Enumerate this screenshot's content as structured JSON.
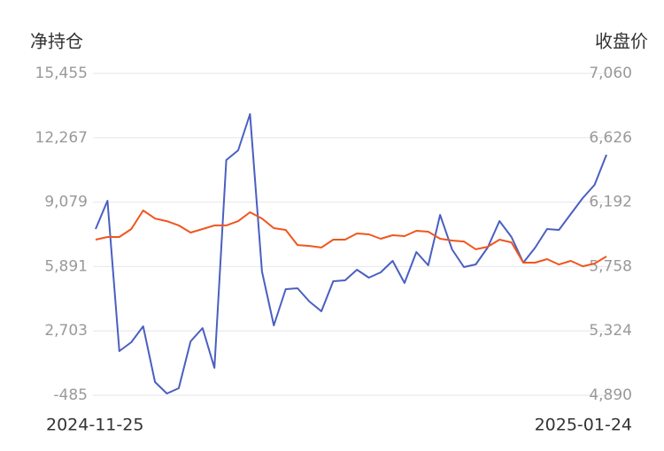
{
  "chart_data": {
    "type": "line",
    "y_label": "净持仓",
    "y2_label": "收盘价",
    "categories": [
      "2024-11-25",
      null,
      null,
      null,
      null,
      null,
      null,
      null,
      null,
      null,
      null,
      null,
      null,
      null,
      null,
      null,
      null,
      null,
      null,
      null,
      null,
      null,
      null,
      null,
      null,
      null,
      null,
      null,
      null,
      null,
      null,
      null,
      null,
      null,
      null,
      null,
      null,
      null,
      null,
      null,
      null,
      null,
      null,
      "2025-01-24"
    ],
    "series": [
      {
        "color": "#4a5fc1",
        "values": [
          7748,
          9149,
          1705,
          2143,
          2931,
          172,
          -397,
          -134,
          2187,
          2843,
          873,
          11164,
          11645,
          13441,
          5646,
          2975,
          4770,
          4814,
          4157,
          3675,
          5164,
          5208,
          5734,
          5340,
          5602,
          6172,
          5077,
          6609,
          5953,
          8449,
          6741,
          5865,
          5996,
          6828,
          8142,
          7354,
          6084,
          6828,
          7748,
          7704,
          8492,
          9281,
          9937,
          11426
        ]
      },
      {
        "color": "#f0561d",
        "axis": "y2",
        "values": [
          5939,
          5957,
          5957,
          6011,
          6136,
          6082,
          6064,
          6035,
          5987,
          6011,
          6035,
          6035,
          6064,
          6124,
          6082,
          6017,
          6005,
          5903,
          5897,
          5886,
          5939,
          5939,
          5981,
          5975,
          5945,
          5969,
          5963,
          5999,
          5993,
          5945,
          5933,
          5927,
          5874,
          5891,
          5939,
          5921,
          5784,
          5784,
          5808,
          5772,
          5796,
          5760,
          5778,
          5826
        ]
      }
    ],
    "ylim": [
      -485,
      15455
    ],
    "yticks": [
      -485,
      {
        "value": 2703,
        "label": "2,703"
      },
      {
        "value": 5891,
        "label": "5,891"
      },
      {
        "value": 9079,
        "label": "9,079"
      },
      {
        "value": 12267,
        "label": "12,267"
      },
      {
        "value": 15455,
        "label": "15,455"
      }
    ],
    "y2lim": [
      4890,
      7060
    ],
    "y2ticks": [
      {
        "value": 4890,
        "label": "4,890"
      },
      {
        "value": 5324,
        "label": "5,324"
      },
      {
        "value": 5758,
        "label": "5,758"
      },
      {
        "value": 6192,
        "label": "6,192"
      },
      {
        "value": 6626,
        "label": "6,626"
      },
      {
        "value": 7060,
        "label": "7,060"
      }
    ],
    "grid": true
  }
}
